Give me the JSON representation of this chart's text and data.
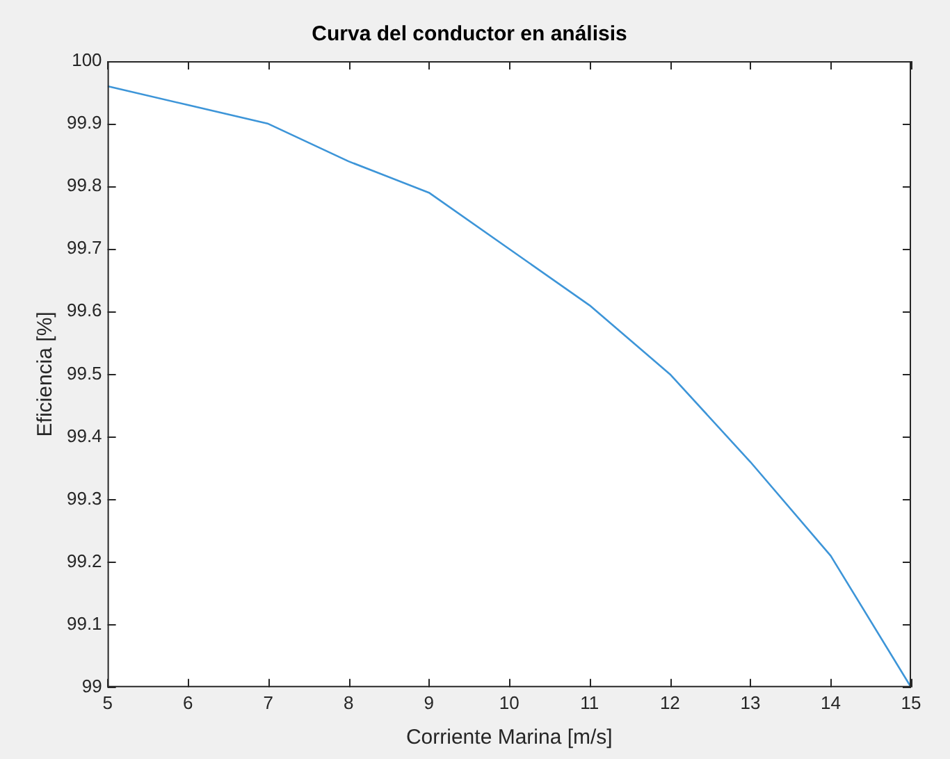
{
  "chart_data": {
    "type": "line",
    "title": "Curva del conductor en análisis",
    "xlabel": "Corriente Marina [m/s]",
    "ylabel": "Eficiencia [%]",
    "x": [
      5,
      6,
      7,
      8,
      9,
      10,
      11,
      12,
      13,
      14,
      15
    ],
    "series": [
      {
        "color": "#3d95d8",
        "values": [
          99.96,
          99.93,
          99.9,
          99.84,
          99.79,
          99.7,
          99.61,
          99.5,
          99.36,
          99.21,
          99.0
        ]
      }
    ],
    "xlim": [
      5,
      15
    ],
    "xticks": [
      5,
      6,
      7,
      8,
      9,
      10,
      11,
      12,
      13,
      14,
      15
    ],
    "ylim": [
      99,
      100
    ],
    "yticks": [
      99,
      99.1,
      99.2,
      99.3,
      99.4,
      99.5,
      99.6,
      99.7,
      99.8,
      99.9,
      100
    ],
    "grid": false,
    "legend": false,
    "marker": "none",
    "line_style": "solid"
  }
}
